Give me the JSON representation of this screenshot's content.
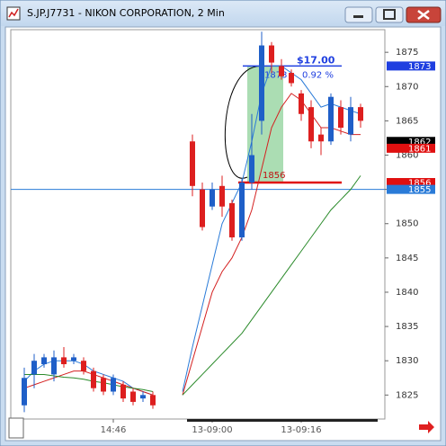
{
  "window": {
    "title": "S.JP.J7731 - NIKON CORPORATION, 2 Min"
  },
  "chart_data": {
    "type": "candlestick",
    "categories": [
      null,
      null,
      null,
      null,
      null,
      null,
      null,
      null,
      null,
      "14:46",
      null,
      null,
      null,
      null,
      null,
      null,
      null,
      null,
      null,
      "13-09:00",
      null,
      null,
      null,
      null,
      null,
      null,
      null,
      null,
      "13-09:16",
      null,
      null,
      null,
      null,
      null,
      null
    ],
    "open": [
      1823.5,
      1828,
      1829.5,
      1828,
      1830.5,
      1830,
      1830,
      1828.5,
      1827.5,
      1825.5,
      1826.5,
      1825.5,
      1824.5,
      1825,
      null,
      null,
      null,
      1862,
      1855,
      1852.5,
      1855.5,
      1853,
      1848,
      1856,
      1865,
      1876,
      1873,
      1872,
      1869,
      1867,
      1863,
      1862,
      1867,
      1863,
      1867
    ],
    "high": [
      1829,
      1831,
      1831,
      1831.5,
      1832,
      1831,
      1830.5,
      1829,
      1828,
      1828,
      1827,
      1826,
      1825.5,
      1825.5,
      null,
      null,
      null,
      1863,
      1856,
      1856,
      1857,
      1853.5,
      1856.5,
      1866,
      1878,
      1876.5,
      1874,
      1872.5,
      1869.5,
      1868,
      1864,
      1869,
      1868,
      1868.5,
      1867.5
    ],
    "low": [
      1822.5,
      1826,
      1829,
      1827,
      1829,
      1829.5,
      1828,
      1825.5,
      1825,
      1825,
      1824,
      1823.5,
      1824,
      1823,
      null,
      null,
      null,
      1854,
      1849,
      1852,
      1851,
      1847.5,
      1847.5,
      1855,
      1863,
      1872,
      1871,
      1870,
      1865,
      1861,
      1860,
      1861.5,
      1863,
      1862,
      1864
    ],
    "close": [
      1827.5,
      1830,
      1830.5,
      1830.5,
      1829.5,
      1830.5,
      1828.5,
      1826,
      1825.5,
      1827.5,
      1824.5,
      1824,
      1825,
      1823.5,
      null,
      null,
      null,
      1855.5,
      1849.5,
      1855,
      1852.5,
      1848,
      1856,
      1860,
      1876,
      1873.5,
      1871.5,
      1870.5,
      1866,
      1862,
      1862,
      1868.5,
      1864,
      1867,
      1865
    ],
    "up_color": "#1f5fc8",
    "down_color": "#dd1f1f",
    "overlays": [
      {
        "color": "#2a7bd8",
        "values": [
          1827,
          1828.5,
          1829.5,
          1830,
          1830,
          1830,
          1829.5,
          1828.5,
          1828,
          1827.5,
          1827,
          1826,
          1825.5,
          1825,
          null,
          null,
          1825.5,
          1832,
          1838,
          1844,
          1850,
          1853,
          1856,
          1862,
          1869,
          1873,
          1873,
          1872,
          1871,
          1869,
          1867,
          1867.5,
          1867,
          1866.5,
          1866
        ]
      },
      {
        "color": "#d42020",
        "values": [
          1826,
          1826.5,
          1827,
          1827.5,
          1828,
          1828.5,
          1828.5,
          1828,
          1827.5,
          1827,
          1826.5,
          1826,
          1825.5,
          1825,
          null,
          null,
          1825,
          1830,
          1835,
          1840,
          1843,
          1845,
          1848,
          1852,
          1858,
          1864,
          1867,
          1869,
          1868,
          1866,
          1864,
          1864,
          1863.5,
          1863,
          1863
        ]
      },
      {
        "color": "#2a8a2a",
        "values": [
          1828,
          1828,
          1828,
          1827.8,
          1827.6,
          1827.5,
          1827.3,
          1827,
          1826.8,
          1826.5,
          1826.2,
          1826,
          1825.8,
          1825.5,
          null,
          null,
          1825,
          1826.5,
          1828,
          1829.5,
          1831,
          1832.5,
          1834,
          1836,
          1838,
          1840,
          1842,
          1844,
          1846,
          1848,
          1850,
          1852,
          1853.5,
          1855,
          1857
        ]
      }
    ],
    "ylim": [
      1821.5,
      1878.3
    ],
    "yticks": [
      1825,
      1830,
      1835,
      1840,
      1845,
      1850,
      1855,
      1860,
      1865,
      1870,
      1875
    ],
    "price_tags": [
      {
        "value": 1873,
        "color": "#1f3fe0"
      },
      {
        "value": 1862,
        "color": "#000000"
      },
      {
        "value": 1861,
        "color": "#e01010"
      },
      {
        "value": 1856,
        "color": "#e01010"
      },
      {
        "value": 1855,
        "color": "#2a7bd8"
      }
    ],
    "horizontal_line": {
      "value": 1855,
      "color": "#2a7bd8"
    },
    "annotation": {
      "amount": "$17.00",
      "percent": "0.92 %",
      "start": 1856,
      "end": 1873
    }
  }
}
